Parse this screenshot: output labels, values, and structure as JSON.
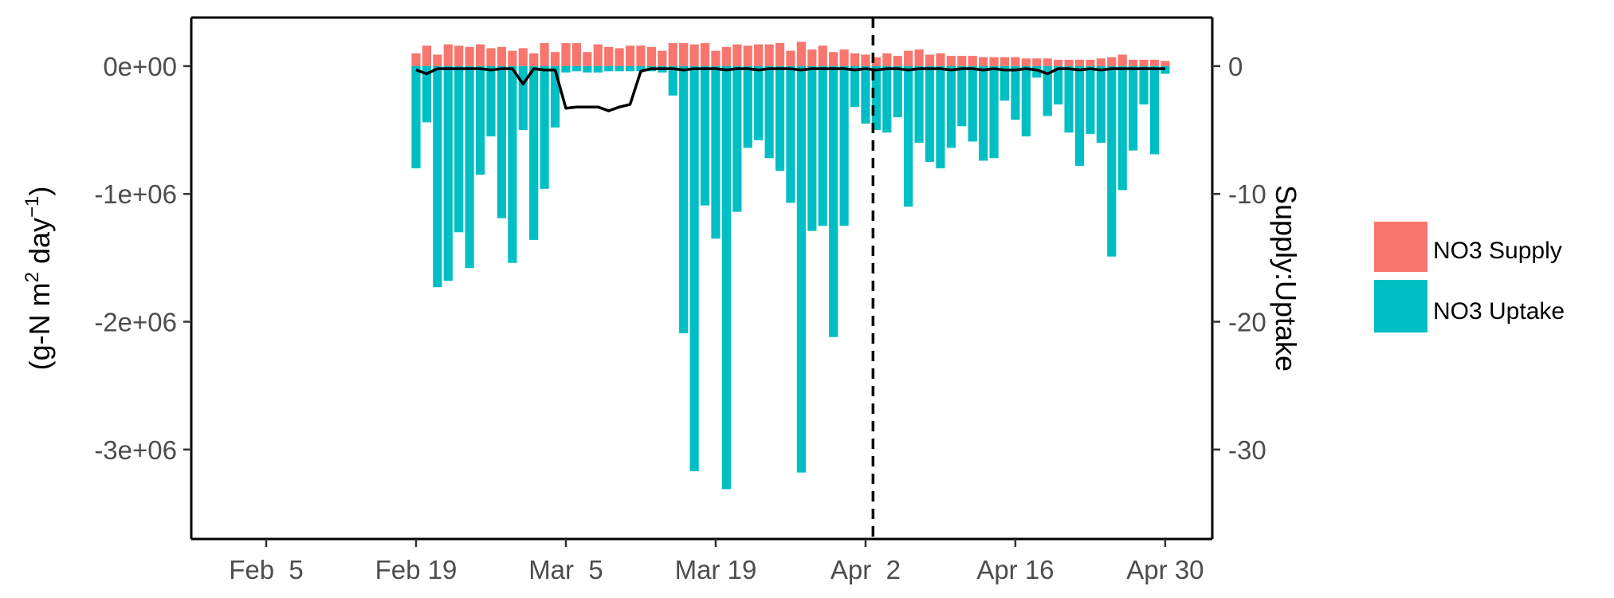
{
  "chart_data": {
    "type": "bar",
    "y_left": {
      "label_prefix": "(g-N  m",
      "label_sup1": "2",
      "label_mid": " day",
      "label_sup2": "−1",
      "label_suffix": ")",
      "range": [
        -3700000,
        380000
      ],
      "ticks": [
        0,
        -1000000,
        -2000000,
        -3000000
      ],
      "tick_labels": [
        "0e+00",
        "-1e+06",
        "-2e+06",
        "-3e+06"
      ]
    },
    "y_right": {
      "label": "Supply:Uptake",
      "ticks": [
        0,
        -10,
        -20,
        -30
      ],
      "tick_labels": [
        "0",
        "-10",
        "-20",
        "-30"
      ]
    },
    "x_axis": {
      "start_date": "2025-01-29",
      "range_days": [
        0,
        95.4
      ],
      "ticks": [
        7,
        21,
        35,
        49,
        63,
        77,
        91
      ],
      "tick_labels": [
        "Feb  5",
        "Feb 19",
        "Mar  5",
        "Mar 19",
        "Apr  2",
        "Apr 16",
        "Apr 30"
      ]
    },
    "vline_day": 63.7,
    "legend": {
      "placement": "right",
      "entries": [
        {
          "label": "NO3 Supply",
          "color": "#F8766D"
        },
        {
          "label": "NO3 Uptake",
          "color": "#00BFC4"
        }
      ]
    },
    "series": [
      {
        "name": "NO3 Supply",
        "color": "#F8766D",
        "x": [
          21,
          22,
          23,
          24,
          25,
          26,
          27,
          28,
          29,
          30,
          31,
          32,
          33,
          34,
          35,
          36,
          37,
          38,
          39,
          40,
          41,
          42,
          43,
          44,
          45,
          46,
          47,
          48,
          49,
          50,
          51,
          52,
          53,
          54,
          55,
          56,
          57,
          58,
          59,
          60,
          61,
          62,
          63,
          64,
          65,
          66,
          67,
          68,
          69,
          70,
          71,
          72,
          73,
          74,
          75,
          76,
          77,
          78,
          79,
          80,
          81,
          82,
          83,
          84,
          85,
          86,
          87,
          88,
          89,
          90,
          91
        ],
        "values": [
          100000,
          160000,
          90000,
          170000,
          160000,
          150000,
          170000,
          140000,
          150000,
          120000,
          140000,
          100000,
          180000,
          110000,
          180000,
          180000,
          110000,
          170000,
          150000,
          140000,
          160000,
          160000,
          150000,
          120000,
          180000,
          180000,
          170000,
          180000,
          120000,
          150000,
          170000,
          160000,
          170000,
          170000,
          180000,
          120000,
          190000,
          130000,
          160000,
          110000,
          130000,
          100000,
          90000,
          70000,
          100000,
          80000,
          120000,
          130000,
          90000,
          100000,
          80000,
          80000,
          80000,
          70000,
          70000,
          70000,
          70000,
          60000,
          60000,
          60000,
          50000,
          50000,
          50000,
          50000,
          60000,
          70000,
          90000,
          50000,
          50000,
          50000,
          40000
        ]
      },
      {
        "name": "NO3 Uptake",
        "color": "#00BFC4",
        "x": [
          21,
          22,
          23,
          24,
          25,
          26,
          27,
          28,
          29,
          30,
          31,
          32,
          33,
          34,
          35,
          36,
          37,
          38,
          39,
          40,
          41,
          42,
          43,
          44,
          45,
          46,
          47,
          48,
          49,
          50,
          51,
          52,
          53,
          54,
          55,
          56,
          57,
          58,
          59,
          60,
          61,
          62,
          63,
          64,
          65,
          66,
          67,
          68,
          69,
          70,
          71,
          72,
          73,
          74,
          75,
          76,
          77,
          78,
          79,
          80,
          81,
          82,
          83,
          84,
          85,
          86,
          87,
          88,
          89,
          90,
          91
        ],
        "values": [
          -800000,
          -440000,
          -1730000,
          -1680000,
          -1300000,
          -1580000,
          -850000,
          -550000,
          -1190000,
          -1540000,
          -500000,
          -1360000,
          -960000,
          -480000,
          -50000,
          -40000,
          -50000,
          -50000,
          -40000,
          -40000,
          -40000,
          -40000,
          -40000,
          -50000,
          -230000,
          -2090000,
          -3170000,
          -1090000,
          -1350000,
          -3310000,
          -1140000,
          -640000,
          -580000,
          -720000,
          -820000,
          -1070000,
          -3180000,
          -1290000,
          -1250000,
          -2120000,
          -1250000,
          -320000,
          -450000,
          -500000,
          -520000,
          -400000,
          -1100000,
          -600000,
          -750000,
          -800000,
          -640000,
          -470000,
          -590000,
          -740000,
          -720000,
          -270000,
          -420000,
          -550000,
          -90000,
          -390000,
          -300000,
          -520000,
          -780000,
          -530000,
          -600000,
          -1490000,
          -970000,
          -660000,
          -300000,
          -690000,
          -60000
        ]
      },
      {
        "name": "Supply:Uptake",
        "color": "#000000",
        "x": [
          21,
          22,
          23,
          24,
          25,
          26,
          27,
          28,
          29,
          30,
          31,
          32,
          33,
          34,
          35,
          36,
          37,
          38,
          39,
          40,
          41,
          42,
          43,
          44,
          45,
          46,
          47,
          48,
          49,
          50,
          51,
          52,
          53,
          54,
          55,
          56,
          57,
          58,
          59,
          60,
          61,
          62,
          63,
          64,
          65,
          66,
          67,
          68,
          69,
          70,
          71,
          72,
          73,
          74,
          75,
          76,
          77,
          78,
          79,
          80,
          81,
          82,
          83,
          84,
          85,
          86,
          87,
          88,
          89,
          90,
          91
        ],
        "values": [
          -0.3,
          -0.6,
          -0.2,
          -0.2,
          -0.2,
          -0.2,
          -0.2,
          -0.3,
          -0.2,
          -0.2,
          -1.4,
          -0.2,
          -0.3,
          -0.3,
          -3.3,
          -3.2,
          -3.2,
          -3.2,
          -3.5,
          -3.2,
          -3.0,
          -0.4,
          -0.2,
          -0.2,
          -0.2,
          -0.3,
          -0.2,
          -0.2,
          -0.2,
          -0.3,
          -0.2,
          -0.2,
          -0.3,
          -0.2,
          -0.2,
          -0.2,
          -0.3,
          -0.2,
          -0.2,
          -0.2,
          -0.2,
          -0.3,
          -0.2,
          -0.3,
          -0.2,
          -0.2,
          -0.3,
          -0.2,
          -0.2,
          -0.2,
          -0.3,
          -0.2,
          -0.2,
          -0.3,
          -0.2,
          -0.3,
          -0.3,
          -0.2,
          -0.3,
          -0.6,
          -0.2,
          -0.2,
          -0.3,
          -0.2,
          -0.3,
          -0.2,
          -0.2,
          -0.2,
          -0.2,
          -0.2,
          -0.2
        ]
      }
    ]
  }
}
